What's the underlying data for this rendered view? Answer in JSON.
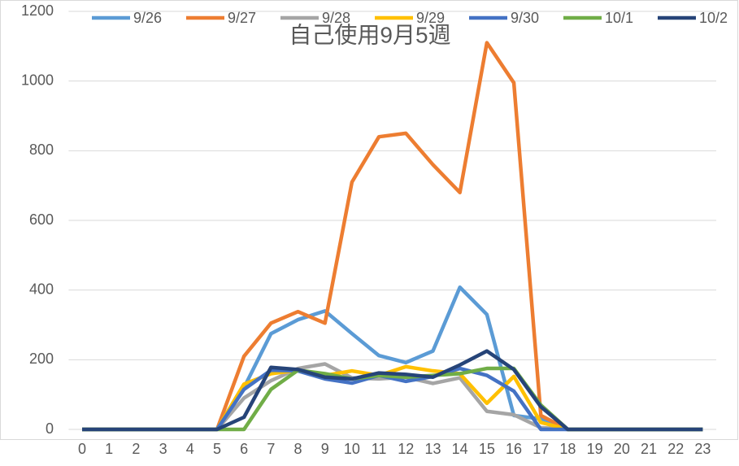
{
  "chart_data": {
    "type": "line",
    "title": "自己使用9月5週",
    "categories": [
      "0",
      "1",
      "2",
      "3",
      "4",
      "5",
      "6",
      "7",
      "8",
      "9",
      "10",
      "11",
      "12",
      "13",
      "14",
      "15",
      "16",
      "17",
      "18",
      "19",
      "20",
      "21",
      "22",
      "23"
    ],
    "series": [
      {
        "name": "9/26",
        "color": "#5b9bd5",
        "values": [
          0,
          0,
          0,
          0,
          0,
          0,
          120,
          275,
          315,
          340,
          275,
          212,
          192,
          225,
          408,
          330,
          40,
          30,
          0,
          0,
          0,
          0,
          0,
          0
        ]
      },
      {
        "name": "9/27",
        "color": "#ed7d31",
        "values": [
          0,
          0,
          0,
          0,
          0,
          0,
          210,
          305,
          338,
          305,
          710,
          840,
          850,
          760,
          680,
          1110,
          995,
          40,
          0,
          0,
          0,
          0,
          0,
          0
        ]
      },
      {
        "name": "9/28",
        "color": "#a5a5a5",
        "values": [
          0,
          0,
          0,
          0,
          0,
          0,
          90,
          140,
          175,
          188,
          148,
          145,
          150,
          132,
          148,
          52,
          42,
          5,
          0,
          0,
          0,
          0,
          0,
          0
        ]
      },
      {
        "name": "9/29",
        "color": "#ffc000",
        "values": [
          0,
          0,
          0,
          0,
          0,
          0,
          130,
          160,
          170,
          155,
          168,
          155,
          180,
          168,
          160,
          75,
          152,
          20,
          0,
          0,
          0,
          0,
          0,
          0
        ]
      },
      {
        "name": "9/30",
        "color": "#4472c4",
        "values": [
          0,
          0,
          0,
          0,
          0,
          0,
          115,
          170,
          168,
          145,
          133,
          155,
          138,
          152,
          175,
          155,
          110,
          0,
          0,
          0,
          0,
          0,
          0,
          0
        ]
      },
      {
        "name": "10/1",
        "color": "#70ad47",
        "values": [
          0,
          0,
          0,
          0,
          0,
          0,
          0,
          115,
          170,
          160,
          145,
          155,
          150,
          155,
          160,
          175,
          175,
          70,
          0,
          0,
          0,
          0,
          0,
          0
        ]
      },
      {
        "name": "10/2",
        "color": "#264478",
        "values": [
          0,
          0,
          0,
          0,
          0,
          0,
          35,
          178,
          172,
          150,
          145,
          162,
          158,
          150,
          185,
          225,
          172,
          65,
          0,
          0,
          0,
          0,
          0,
          0
        ]
      }
    ],
    "ylim": [
      0,
      1200
    ],
    "yticks": [
      0,
      200,
      400,
      600,
      800,
      1000,
      1200
    ],
    "grid": true
  }
}
